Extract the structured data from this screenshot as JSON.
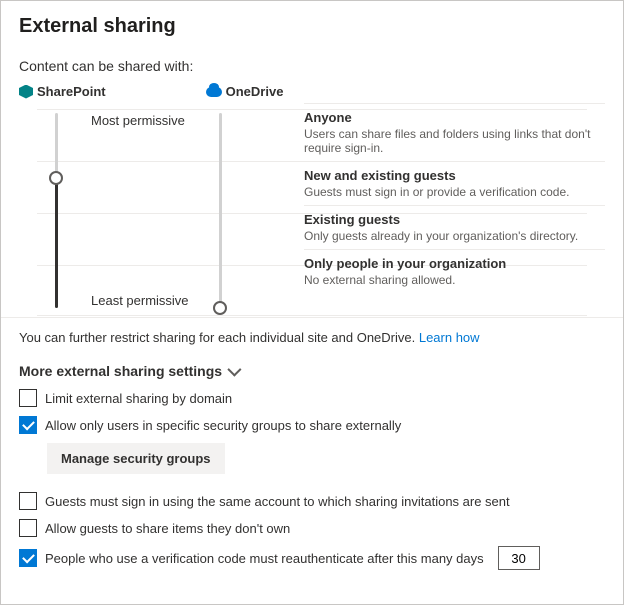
{
  "title": "External sharing",
  "subhead": "Content can be shared with:",
  "products": {
    "sharepoint": "SharePoint",
    "onedrive": "OneDrive"
  },
  "permLabels": {
    "most": "Most permissive",
    "least": "Least permissive"
  },
  "levels": [
    {
      "title": "Anyone",
      "desc": "Users can share files and folders using links that don't require sign-in."
    },
    {
      "title": "New and existing guests",
      "desc": "Guests must sign in or provide a verification code."
    },
    {
      "title": "Existing guests",
      "desc": "Only guests already in your organization's directory."
    },
    {
      "title": "Only people in your organization",
      "desc": "No external sharing allowed."
    }
  ],
  "sliders": {
    "sharepoint_level": 1,
    "onedrive_level": 3
  },
  "restrictNote": {
    "text": "You can further restrict sharing for each individual site and OneDrive. ",
    "link": "Learn how"
  },
  "moreHeader": "More external sharing settings",
  "settings": {
    "limitDomain": {
      "label": "Limit external sharing by domain",
      "checked": false
    },
    "allowGroups": {
      "label": "Allow only users in specific security groups to share externally",
      "checked": true
    },
    "manageGroupsBtn": "Manage security groups",
    "guestsSameAccount": {
      "label": "Guests must sign in using the same account to which sharing invitations are sent",
      "checked": false
    },
    "guestsShareNotOwn": {
      "label": "Allow guests to share items they don't own",
      "checked": false
    },
    "reauth": {
      "label": "People who use a verification code must reauthenticate after this many days",
      "checked": true,
      "days": "30"
    }
  },
  "colors": {
    "accent": "#0078d4",
    "sp": "#038387",
    "text": "#323130",
    "muted": "#605e5c",
    "border": "#edebe9"
  }
}
